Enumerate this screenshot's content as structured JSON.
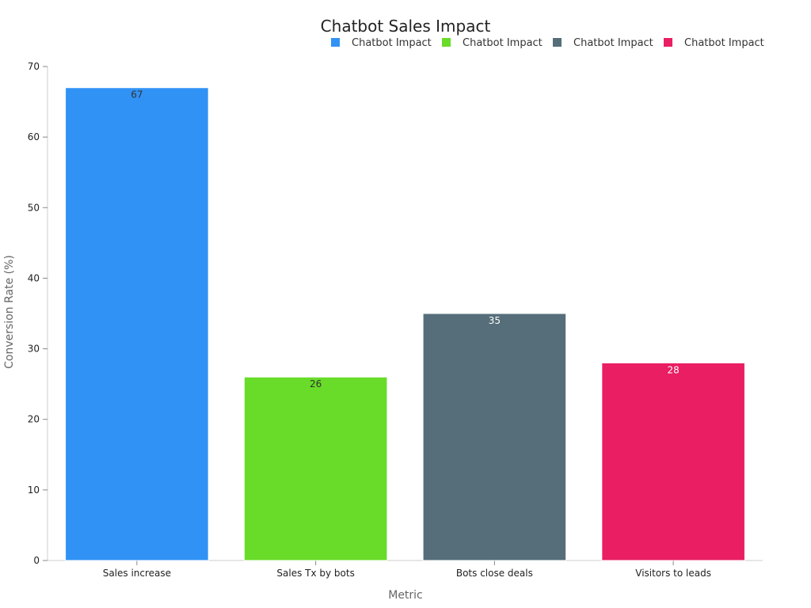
{
  "chart_data": {
    "type": "bar",
    "title": "Chatbot Sales Impact",
    "xlabel": "Metric",
    "ylabel": "Conversion Rate (%)",
    "ylim": [
      0,
      70
    ],
    "yticks": [
      0,
      10,
      20,
      30,
      40,
      50,
      60,
      70
    ],
    "grid": false,
    "legend_position": "top-right",
    "categories": [
      "Sales increase",
      "Sales Tx by bots",
      "Bots close deals",
      "Visitors to leads"
    ],
    "values": [
      67,
      26,
      35,
      28
    ],
    "series": [
      {
        "name": "Chatbot Impact",
        "color": "#3092f5",
        "label_color": "#333333"
      },
      {
        "name": "Chatbot Impact",
        "color": "#68dc29",
        "label_color": "#333333"
      },
      {
        "name": "Chatbot Impact",
        "color": "#566e7a",
        "label_color": "#ffffff"
      },
      {
        "name": "Chatbot Impact",
        "color": "#e91e63",
        "label_color": "#ffffff"
      }
    ]
  }
}
